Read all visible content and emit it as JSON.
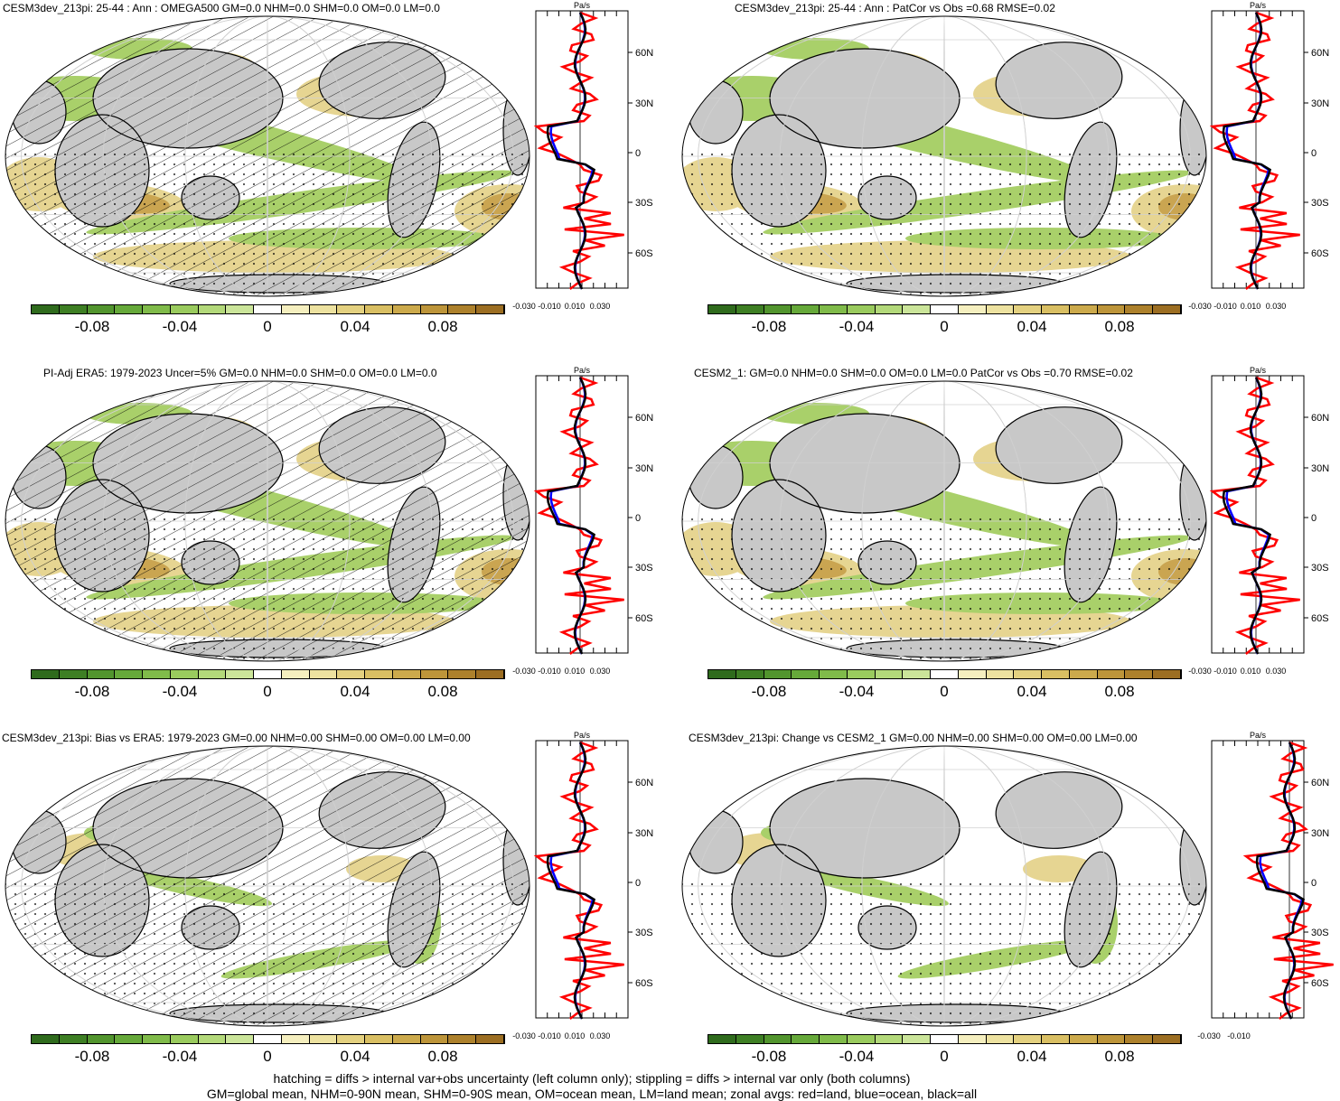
{
  "panels": [
    {
      "title": "CESM3dev_213pi: 25-44 : Ann : OMEGA500 GM=0.0 NHM=0.0 SHM=0.0 OM=0.0 LM=0.0",
      "hatching": true,
      "stipple": true,
      "pattern": "a"
    },
    {
      "title": "CESM3dev_213pi: 25-44 : Ann : PatCor vs Obs =0.68 RMSE=0.02",
      "hatching": false,
      "stipple": true,
      "pattern": "a"
    },
    {
      "title": "PI-Adj ERA5: 1979-2023 Uncer=5% GM=0.0 NHM=0.0 SHM=0.0 OM=0.0 LM=0.0",
      "hatching": true,
      "stipple": true,
      "pattern": "a"
    },
    {
      "title": "CESM2_1: GM=0.0 NHM=0.0 SHM=0.0 OM=0.0 LM=0.0 PatCor vs Obs =0.70 RMSE=0.02",
      "hatching": false,
      "stipple": true,
      "pattern": "a"
    },
    {
      "title": "CESM3dev_213pi: Bias vs ERA5: 1979-2023 GM=0.00 NHM=0.00 SHM=0.00 OM=0.00 LM=0.00",
      "hatching": true,
      "stipple": true,
      "pattern": "b"
    },
    {
      "title": "CESM3dev_213pi: Change vs CESM2_1 GM=0.00 NHM=0.00 SHM=0.00 OM=0.00 LM=0.00",
      "hatching": false,
      "stipple": true,
      "pattern": "b"
    }
  ],
  "zonal_plot": {
    "unit": "Pa/s",
    "lat_labels": [
      "60N",
      "30N",
      "0",
      "30S",
      "60S"
    ],
    "x_ticks_full": [
      "-0.030",
      "-0.010",
      "0.010",
      "0.030"
    ],
    "x_ticks_last": [
      "-0.030",
      "-0.010"
    ],
    "colors": {
      "land": "#ff0000",
      "ocean": "#0000ff",
      "all": "#000000"
    }
  },
  "colorbar": {
    "labels": [
      "-0.08",
      "-0.04",
      "0",
      "0.04",
      "0.08"
    ],
    "colors": [
      "#2f6b1d",
      "#3e7f24",
      "#52952e",
      "#66a93a",
      "#80bb4a",
      "#9acb5e",
      "#b3d97a",
      "#cbe59a",
      "#ffffff",
      "#f5efbf",
      "#ede2a0",
      "#e4d180",
      "#d9bf63",
      "#ccaa4c",
      "#bd953a",
      "#ad812c",
      "#9c6e22"
    ]
  },
  "map_colors": {
    "land": "#c8c8c8",
    "ocean": "#ffffff",
    "green": "#a9d06a",
    "dkgreen": "#7fb24a",
    "tan": "#e6d592",
    "brown": "#caa551"
  },
  "footnote": {
    "line1": "hatching = diffs > internal var+obs uncertainty (left column only); stippling = diffs > internal var only (both columns)",
    "line2": "GM=global mean, NHM=0-90N mean, SHM=0-90S mean, OM=ocean mean, LM=land mean; zonal avgs: red=land, blue=ocean, black=all"
  }
}
